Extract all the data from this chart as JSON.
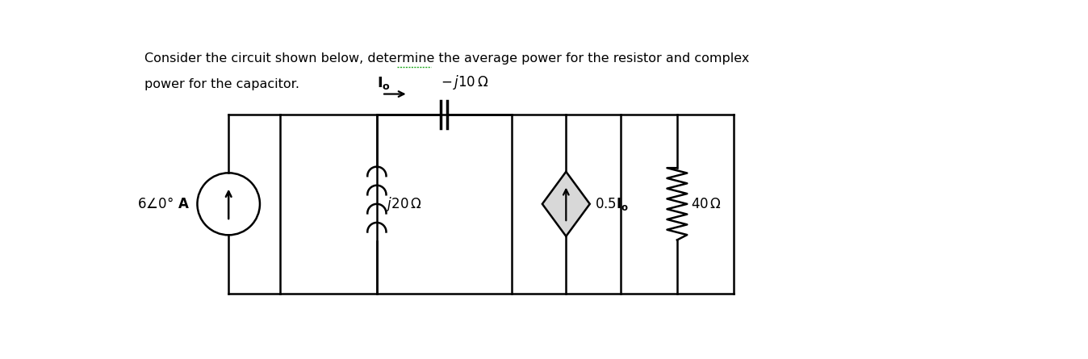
{
  "bg_color": "#ffffff",
  "color": "#000000",
  "fig_width": 13.48,
  "fig_height": 4.45,
  "line1": "Consider the circuit shown below, determine the average power for the resistor and complex",
  "line2": "power for the capacitor.",
  "label_Io": "$\\mathbf{I_o}$",
  "label_cap": "$- j10\\,\\Omega$",
  "label_inductor": "$j20\\,\\Omega$",
  "label_dep": "$0.5\\mathbf{I_o}$",
  "label_res": "$40\\,\\Omega$",
  "label_src": "$6\\angle 0^\\circ$ A"
}
